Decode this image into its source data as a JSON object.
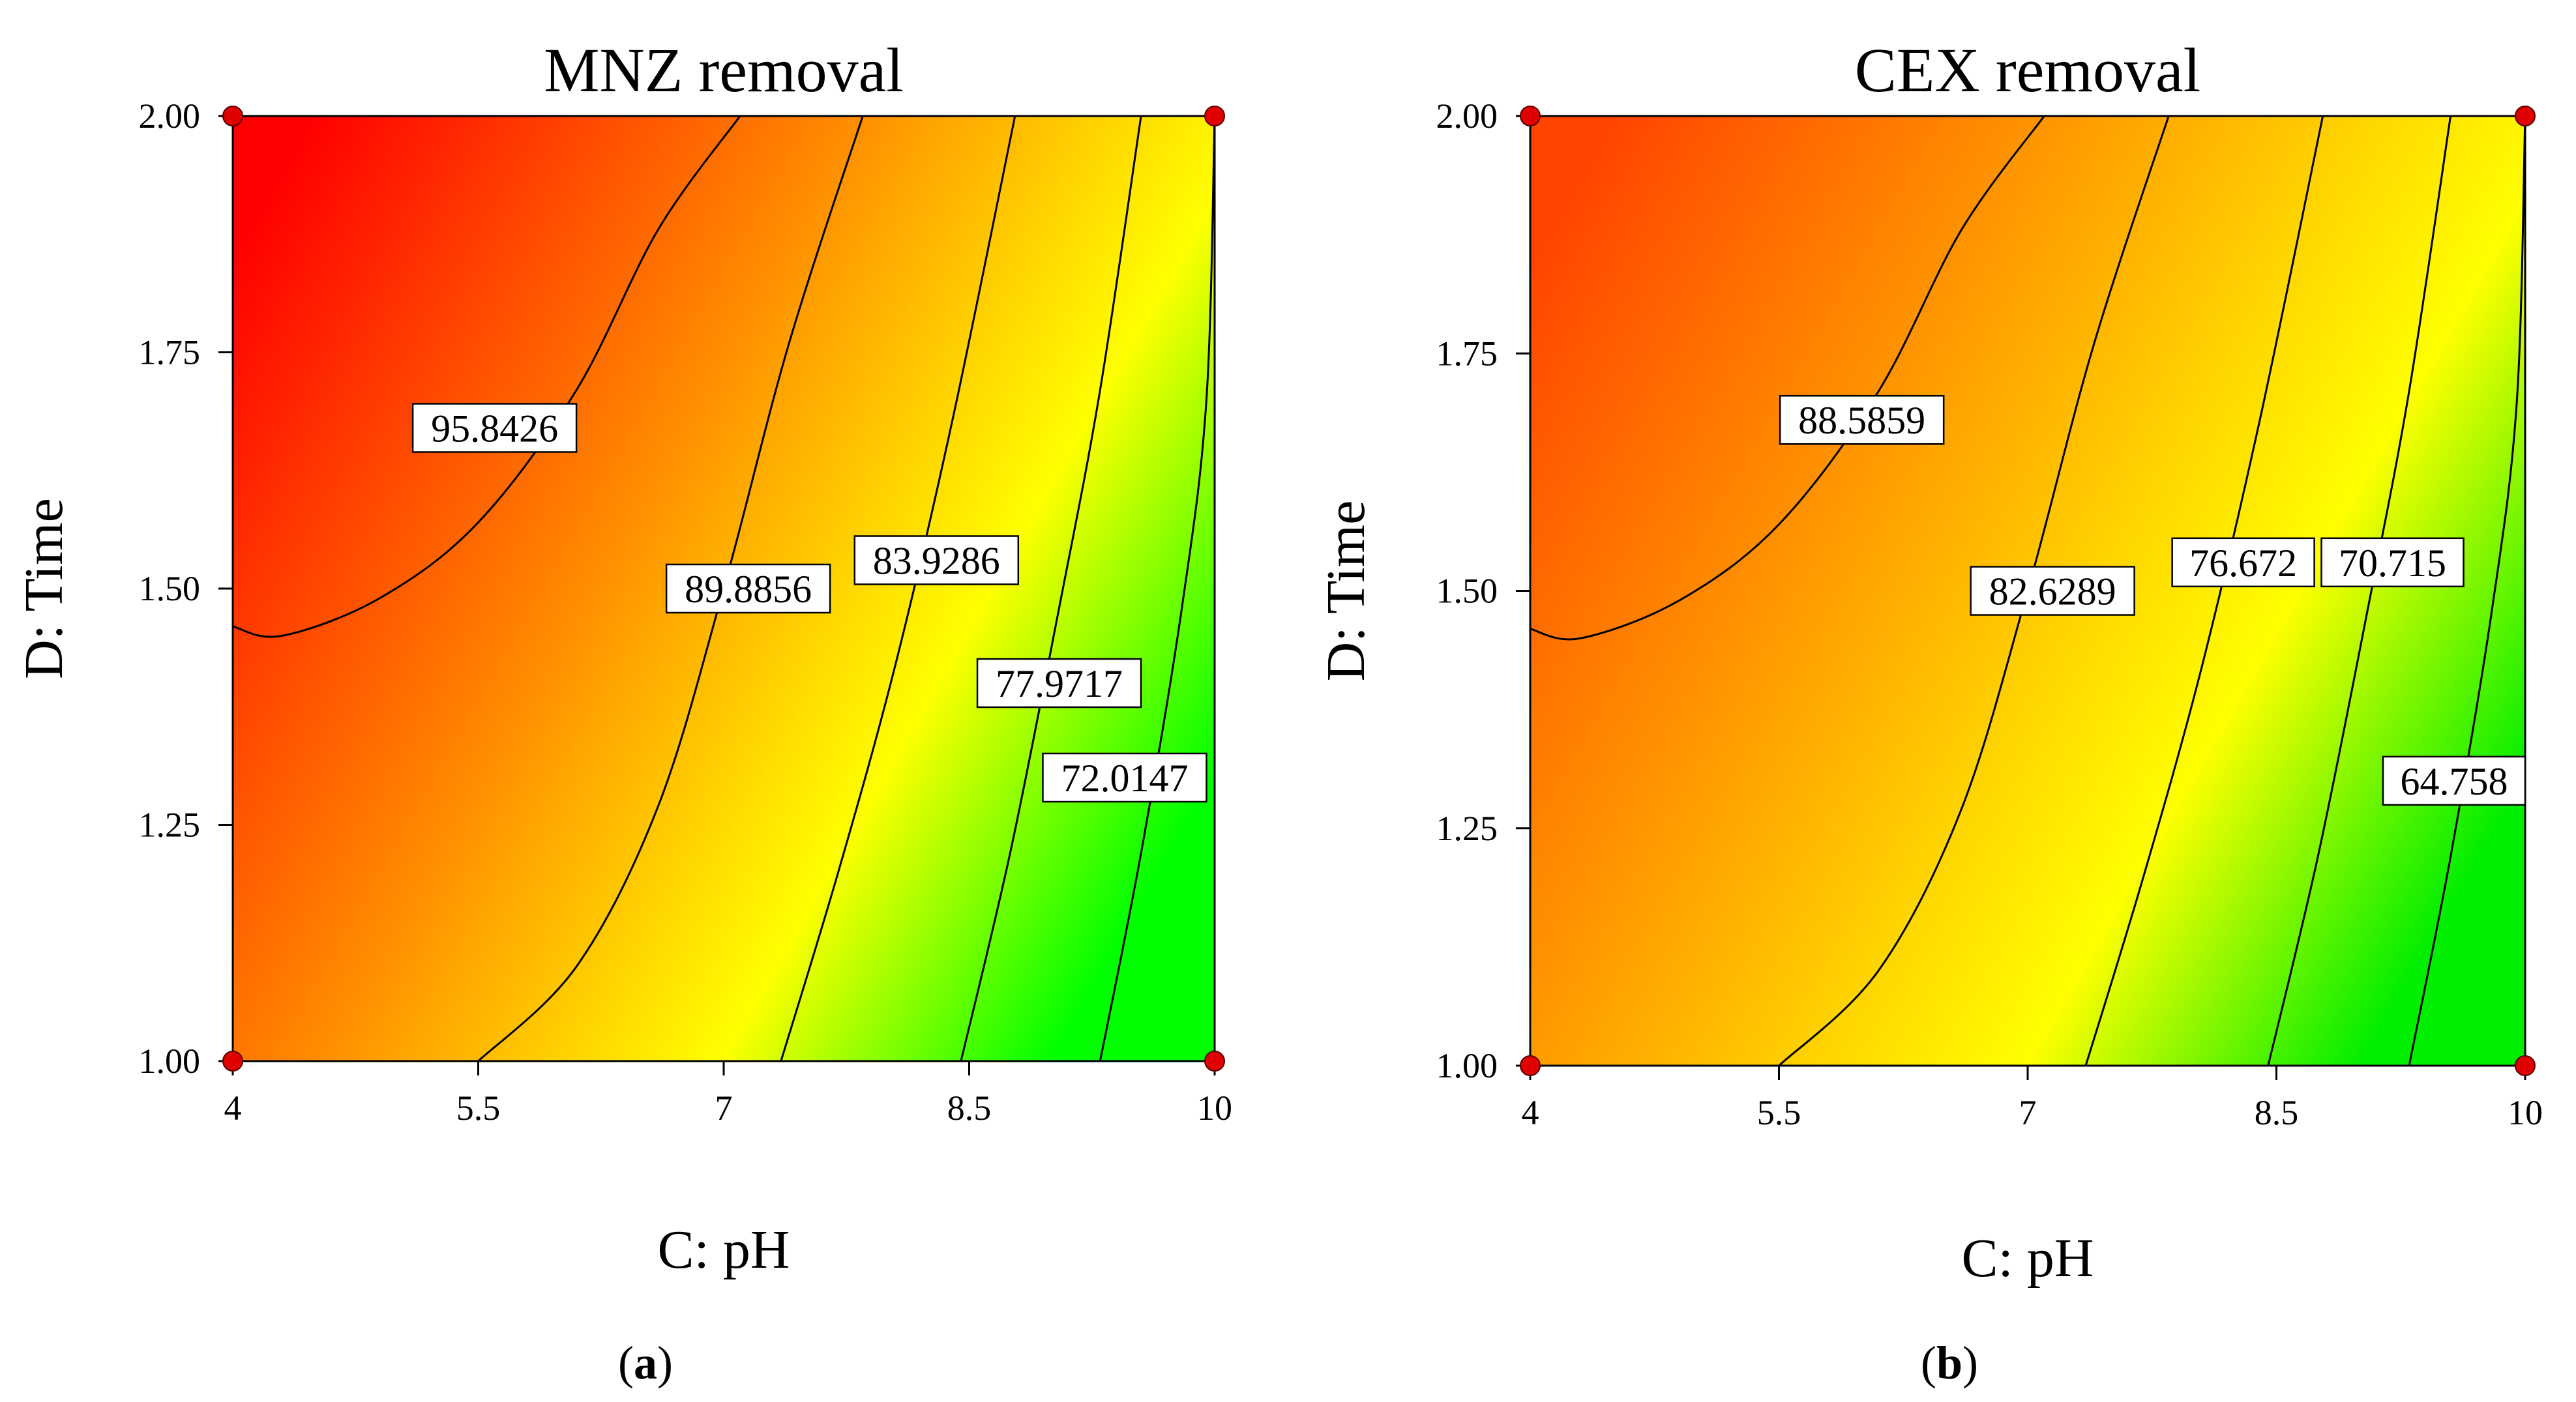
{
  "chart_data": [
    {
      "type": "contour",
      "panel_letter": "a",
      "title": "MNZ removal",
      "xlabel": "C: pH",
      "ylabel": "D: Time",
      "xlim": [
        4,
        10
      ],
      "ylim": [
        1.0,
        2.0
      ],
      "xticks": [
        "4",
        "5.5",
        "7",
        "8.5",
        "10"
      ],
      "yticks": [
        "1.00",
        "1.25",
        "1.50",
        "1.75",
        "2.00"
      ],
      "design_points": [
        [
          4,
          2.0
        ],
        [
          10,
          2.0
        ],
        [
          4,
          1.0
        ],
        [
          10,
          1.0
        ]
      ],
      "colors": {
        "high": "#ff0000",
        "mid_high": "#ff8c00",
        "mid": "#ffff00",
        "low": "#00ff00",
        "point": "#e00000"
      },
      "color_range": [
        66.0,
        98.0
      ],
      "contours": [
        {
          "label": "95.8426",
          "points": [
            [
              4.0,
              1.46
            ],
            [
              4.3,
              1.45
            ],
            [
              4.9,
              1.49
            ],
            [
              5.5,
              1.57
            ],
            [
              6.1,
              1.71
            ],
            [
              6.6,
              1.88
            ],
            [
              7.1,
              2.0
            ]
          ],
          "label_at": [
            5.6,
            1.67
          ]
        },
        {
          "label": "89.8856",
          "points": [
            [
              5.5,
              1.0
            ],
            [
              6.1,
              1.1
            ],
            [
              6.6,
              1.27
            ],
            [
              7.0,
              1.5
            ],
            [
              7.4,
              1.76
            ],
            [
              7.85,
              2.0
            ]
          ],
          "label_at": [
            7.15,
            1.5
          ]
        },
        {
          "label": "83.9286",
          "points": [
            [
              7.35,
              1.0
            ],
            [
              7.7,
              1.2
            ],
            [
              8.05,
              1.42
            ],
            [
              8.4,
              1.68
            ],
            [
              8.78,
              2.0
            ]
          ],
          "label_at": [
            8.3,
            1.53
          ]
        },
        {
          "label": "77.9717",
          "points": [
            [
              8.45,
              1.0
            ],
            [
              8.75,
              1.22
            ],
            [
              9.05,
              1.48
            ],
            [
              9.3,
              1.71
            ],
            [
              9.55,
              2.0
            ]
          ],
          "label_at": [
            9.05,
            1.4
          ]
        },
        {
          "label": "72.0147",
          "points": [
            [
              9.3,
              1.0
            ],
            [
              9.55,
              1.22
            ],
            [
              9.8,
              1.48
            ],
            [
              9.95,
              1.7
            ],
            [
              10.0,
              2.0
            ]
          ],
          "label_at": [
            9.45,
            1.3
          ]
        }
      ]
    },
    {
      "type": "contour",
      "panel_letter": "b",
      "title": "CEX removal",
      "xlabel": "C: pH",
      "ylabel": "D: Time",
      "xlim": [
        4,
        10
      ],
      "ylim": [
        1.0,
        2.0
      ],
      "xticks": [
        "4",
        "5.5",
        "7",
        "8.5",
        "10"
      ],
      "yticks": [
        "1.00",
        "1.25",
        "1.50",
        "1.75",
        "2.00"
      ],
      "design_points": [
        [
          4,
          2.0
        ],
        [
          10,
          2.0
        ],
        [
          4,
          1.0
        ],
        [
          10,
          1.0
        ]
      ],
      "colors": {
        "high": "#ff4400",
        "mid_high": "#ffaa00",
        "mid": "#ffff00",
        "low": "#00ee00",
        "point": "#e00000"
      },
      "color_range": [
        60.0,
        93.0
      ],
      "contours": [
        {
          "label": "88.5859",
          "points": [
            [
              4.0,
              1.46
            ],
            [
              4.3,
              1.45
            ],
            [
              4.9,
              1.49
            ],
            [
              5.5,
              1.57
            ],
            [
              6.1,
              1.71
            ],
            [
              6.6,
              1.88
            ],
            [
              7.1,
              2.0
            ]
          ],
          "label_at": [
            6.0,
            1.68
          ]
        },
        {
          "label": "82.6289",
          "points": [
            [
              5.5,
              1.0
            ],
            [
              6.1,
              1.1
            ],
            [
              6.6,
              1.27
            ],
            [
              7.0,
              1.5
            ],
            [
              7.4,
              1.76
            ],
            [
              7.85,
              2.0
            ]
          ],
          "label_at": [
            7.15,
            1.5
          ]
        },
        {
          "label": "76.672",
          "points": [
            [
              7.35,
              1.0
            ],
            [
              7.7,
              1.2
            ],
            [
              8.05,
              1.42
            ],
            [
              8.4,
              1.68
            ],
            [
              8.78,
              2.0
            ]
          ],
          "label_at": [
            8.3,
            1.53
          ]
        },
        {
          "label": "70.715",
          "points": [
            [
              8.45,
              1.0
            ],
            [
              8.75,
              1.22
            ],
            [
              9.05,
              1.48
            ],
            [
              9.3,
              1.71
            ],
            [
              9.55,
              2.0
            ]
          ],
          "label_at": [
            9.2,
            1.53
          ]
        },
        {
          "label": "64.758",
          "points": [
            [
              9.3,
              1.0
            ],
            [
              9.55,
              1.22
            ],
            [
              9.8,
              1.48
            ],
            [
              9.95,
              1.7
            ],
            [
              10.0,
              2.0
            ]
          ],
          "label_at": [
            9.65,
            1.3
          ]
        }
      ]
    }
  ]
}
